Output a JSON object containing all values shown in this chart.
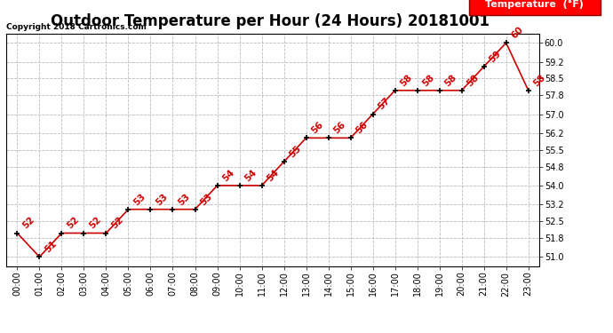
{
  "title": "Outdoor Temperature per Hour (24 Hours) 20181001",
  "copyright": "Copyright 2018 Cartronics.com",
  "legend_label": "Temperature  (°F)",
  "hours": [
    "00:00",
    "01:00",
    "02:00",
    "03:00",
    "04:00",
    "05:00",
    "06:00",
    "07:00",
    "08:00",
    "09:00",
    "10:00",
    "11:00",
    "12:00",
    "13:00",
    "14:00",
    "15:00",
    "16:00",
    "17:00",
    "18:00",
    "19:00",
    "20:00",
    "21:00",
    "22:00",
    "23:00"
  ],
  "temperatures": [
    52,
    51,
    52,
    52,
    52,
    53,
    53,
    53,
    53,
    54,
    54,
    54,
    55,
    56,
    56,
    56,
    57,
    58,
    58,
    58,
    58,
    59,
    60,
    58
  ],
  "ylim_min": 50.6,
  "ylim_max": 60.4,
  "yticks": [
    51.0,
    51.8,
    52.5,
    53.2,
    54.0,
    54.8,
    55.5,
    56.2,
    57.0,
    57.8,
    58.5,
    59.2,
    60.0
  ],
  "ytick_labels": [
    "51.0",
    "51.8",
    "52.5",
    "53.2",
    "54.0",
    "54.8",
    "55.5",
    "56.2",
    "57.0",
    "57.8",
    "58.5",
    "59.2",
    "60.0"
  ],
  "line_color": "#cc0000",
  "marker_color": "black",
  "label_color": "#cc0000",
  "bg_color": "white",
  "grid_color": "#bbbbbb",
  "title_fontsize": 12,
  "copyright_fontsize": 6.5,
  "tick_fontsize": 7,
  "annotation_fontsize": 7.5,
  "legend_fontsize": 8
}
